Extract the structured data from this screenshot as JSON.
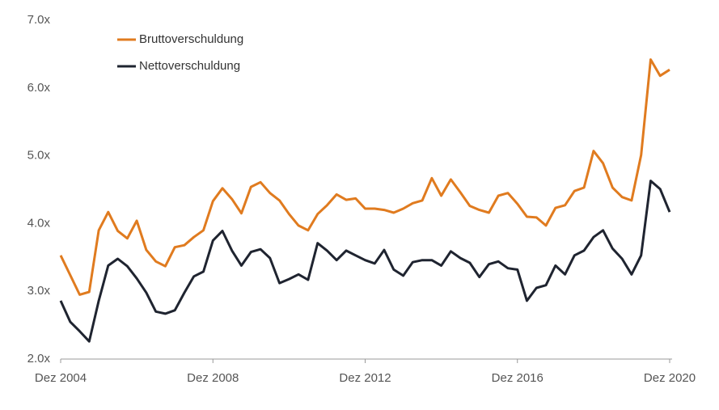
{
  "chart_data": {
    "type": "line",
    "categories": [
      "Dez 2004",
      null,
      null,
      null,
      null,
      null,
      null,
      null,
      null,
      null,
      null,
      null,
      null,
      null,
      null,
      null,
      "Dez 2008",
      null,
      null,
      null,
      null,
      null,
      null,
      null,
      null,
      null,
      null,
      null,
      null,
      null,
      null,
      null,
      "Dez 2012",
      null,
      null,
      null,
      null,
      null,
      null,
      null,
      null,
      null,
      null,
      null,
      null,
      null,
      null,
      null,
      "Dez 2016",
      null,
      null,
      null,
      null,
      null,
      null,
      null,
      null,
      null,
      null,
      null,
      null,
      null,
      null,
      null,
      "Dez 2020"
    ],
    "series": [
      {
        "name": "Bruttoverschuldung",
        "color": "#e07b1f",
        "values": [
          3.53,
          3.24,
          2.95,
          2.99,
          3.9,
          4.17,
          3.89,
          3.78,
          4.04,
          3.61,
          3.44,
          3.37,
          3.65,
          3.68,
          3.8,
          3.9,
          4.33,
          4.52,
          4.36,
          4.15,
          4.54,
          4.61,
          4.45,
          4.34,
          4.14,
          3.97,
          3.9,
          4.14,
          4.27,
          4.43,
          4.35,
          4.37,
          4.22,
          4.22,
          4.2,
          4.16,
          4.22,
          4.3,
          4.34,
          4.67,
          4.41,
          4.65,
          4.46,
          4.26,
          4.2,
          4.16,
          4.41,
          4.45,
          4.29,
          4.1,
          4.09,
          3.97,
          4.23,
          4.27,
          4.48,
          4.53,
          5.07,
          4.89,
          4.53,
          4.39,
          4.34,
          5.01,
          6.42,
          6.18,
          6.27
        ]
      },
      {
        "name": "Nettoverschuldung",
        "color": "#1f2430",
        "values": [
          2.86,
          2.55,
          2.41,
          2.26,
          2.86,
          3.38,
          3.48,
          3.37,
          3.19,
          2.98,
          2.7,
          2.67,
          2.72,
          2.98,
          3.22,
          3.29,
          3.75,
          3.89,
          3.6,
          3.38,
          3.58,
          3.62,
          3.49,
          3.12,
          3.18,
          3.25,
          3.17,
          3.71,
          3.6,
          3.46,
          3.6,
          3.53,
          3.46,
          3.41,
          3.61,
          3.32,
          3.23,
          3.43,
          3.46,
          3.46,
          3.38,
          3.59,
          3.49,
          3.42,
          3.21,
          3.4,
          3.44,
          3.34,
          3.32,
          2.86,
          3.05,
          3.09,
          3.38,
          3.25,
          3.53,
          3.6,
          3.8,
          3.9,
          3.63,
          3.48,
          3.25,
          3.53,
          4.63,
          4.51,
          4.17
        ]
      }
    ],
    "ylim": [
      2,
      7
    ],
    "yticks": [
      {
        "value": 2,
        "label": "2.0x"
      },
      {
        "value": 3,
        "label": "3.0x"
      },
      {
        "value": 4,
        "label": "4.0x"
      },
      {
        "value": 5,
        "label": "5.0x"
      },
      {
        "value": 6,
        "label": "6.0x"
      },
      {
        "value": 7,
        "label": "7.0x"
      }
    ],
    "grid": false,
    "legend": "top-left"
  }
}
